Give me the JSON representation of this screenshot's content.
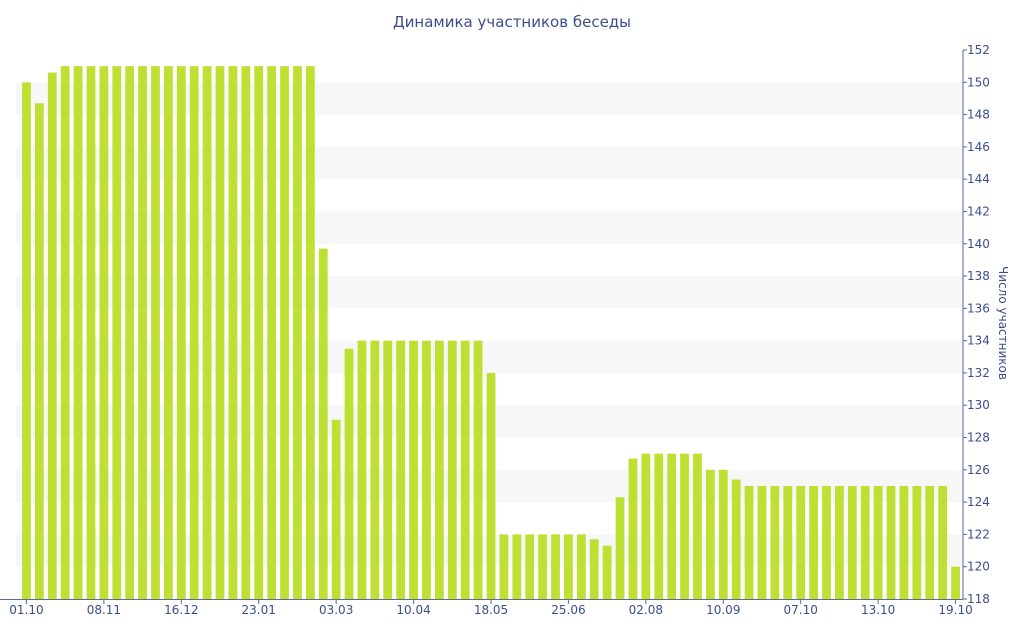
{
  "chart_data": {
    "type": "bar",
    "title": "Динамика участников беседы",
    "xlabel": "",
    "ylabel": "Число участников",
    "ylim": [
      118,
      152
    ],
    "yticks": [
      118,
      120,
      122,
      124,
      126,
      128,
      130,
      132,
      134,
      136,
      138,
      140,
      142,
      144,
      146,
      148,
      150,
      152
    ],
    "grid": "alternating horizontal bands",
    "bar_color": "#bde033",
    "band_color": "#f7f7f7",
    "text_color": "#3b4e8c",
    "x_tick_labels": [
      {
        "index": 0,
        "label": "01.10"
      },
      {
        "index": 6,
        "label": "08.11"
      },
      {
        "index": 12,
        "label": "16.12"
      },
      {
        "index": 18,
        "label": "23.01"
      },
      {
        "index": 24,
        "label": "03.03"
      },
      {
        "index": 30,
        "label": "10.04"
      },
      {
        "index": 36,
        "label": "18.05"
      },
      {
        "index": 42,
        "label": "25.06"
      },
      {
        "index": 48,
        "label": "02.08"
      },
      {
        "index": 54,
        "label": "10.09"
      },
      {
        "index": 60,
        "label": "07.10"
      },
      {
        "index": 66,
        "label": "13.10"
      },
      {
        "index": 72,
        "label": "19.10"
      }
    ],
    "values": [
      150,
      148.7,
      150.6,
      151,
      151,
      151,
      151,
      151,
      151,
      151,
      151,
      151,
      151,
      151,
      151,
      151,
      151,
      151,
      151,
      151,
      151,
      151,
      151,
      139.7,
      129.1,
      133.5,
      134,
      134,
      134,
      134,
      134,
      134,
      134,
      134,
      134,
      134,
      132,
      122,
      122,
      122,
      122,
      122,
      122,
      122,
      121.7,
      121.3,
      124.3,
      126.7,
      127,
      127,
      127,
      127,
      127,
      126,
      126,
      125.4,
      125,
      125,
      125,
      125,
      125,
      125,
      125,
      125,
      125,
      125,
      125,
      125,
      125,
      125,
      125,
      125,
      120
    ]
  }
}
